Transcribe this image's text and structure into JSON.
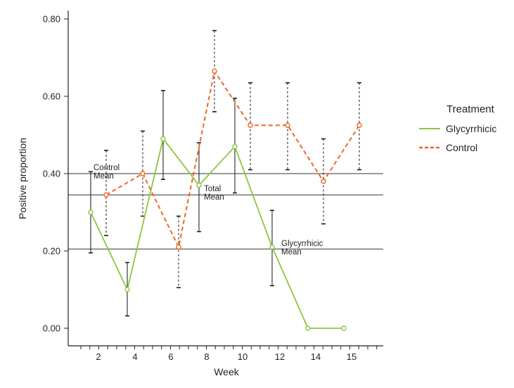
{
  "chart_data": {
    "type": "line",
    "xlabel": "Week",
    "ylabel": "Positive proportion",
    "x_ticks": [
      "2",
      "4",
      "6",
      "8",
      "10",
      "12",
      "14",
      "15"
    ],
    "y_ticks": [
      "0.00",
      "0.20",
      "0.40",
      "0.60",
      "0.80"
    ],
    "ylim": [
      -0.05,
      0.82
    ],
    "grid": false,
    "legend": {
      "title": "Treatment",
      "placement": "right",
      "entries": [
        {
          "name": "Glycyrrhicic",
          "color": "#8cc63f",
          "dash": "solid"
        },
        {
          "name": "Control",
          "color": "#f26522",
          "dash": "dashed"
        }
      ]
    },
    "series": [
      {
        "name": "Glycyrrhicic",
        "color": "#8cc63f",
        "x": [
          "2",
          "4",
          "6",
          "8",
          "10",
          "12",
          "14",
          "15"
        ],
        "values": [
          0.3,
          0.1,
          0.49,
          0.37,
          0.47,
          0.21,
          0.0,
          0.0
        ],
        "error_low": [
          0.195,
          0.032,
          0.385,
          0.25,
          0.35,
          0.11,
          null,
          null
        ],
        "error_high": [
          0.405,
          0.17,
          0.615,
          0.48,
          0.595,
          0.305,
          null,
          null
        ]
      },
      {
        "name": "Control",
        "color": "#f26522",
        "x": [
          "2",
          "4",
          "6",
          "8",
          "10",
          "12",
          "14",
          "15"
        ],
        "values": [
          0.345,
          0.4,
          0.21,
          0.665,
          0.525,
          0.525,
          0.38,
          0.525
        ],
        "error_low": [
          0.24,
          0.29,
          0.105,
          0.56,
          0.41,
          0.41,
          0.27,
          0.41
        ],
        "error_high": [
          0.46,
          0.51,
          0.29,
          0.77,
          0.635,
          0.635,
          0.49,
          0.635
        ]
      }
    ],
    "reference_lines": [
      {
        "label_line1": "Control",
        "label_line2": "Mean",
        "value": 0.4
      },
      {
        "label_line1": "Total",
        "label_line2": "Mean",
        "value": 0.345
      },
      {
        "label_line1": "Glycyrrhicic",
        "label_line2": "Mean",
        "value": 0.205
      }
    ]
  }
}
